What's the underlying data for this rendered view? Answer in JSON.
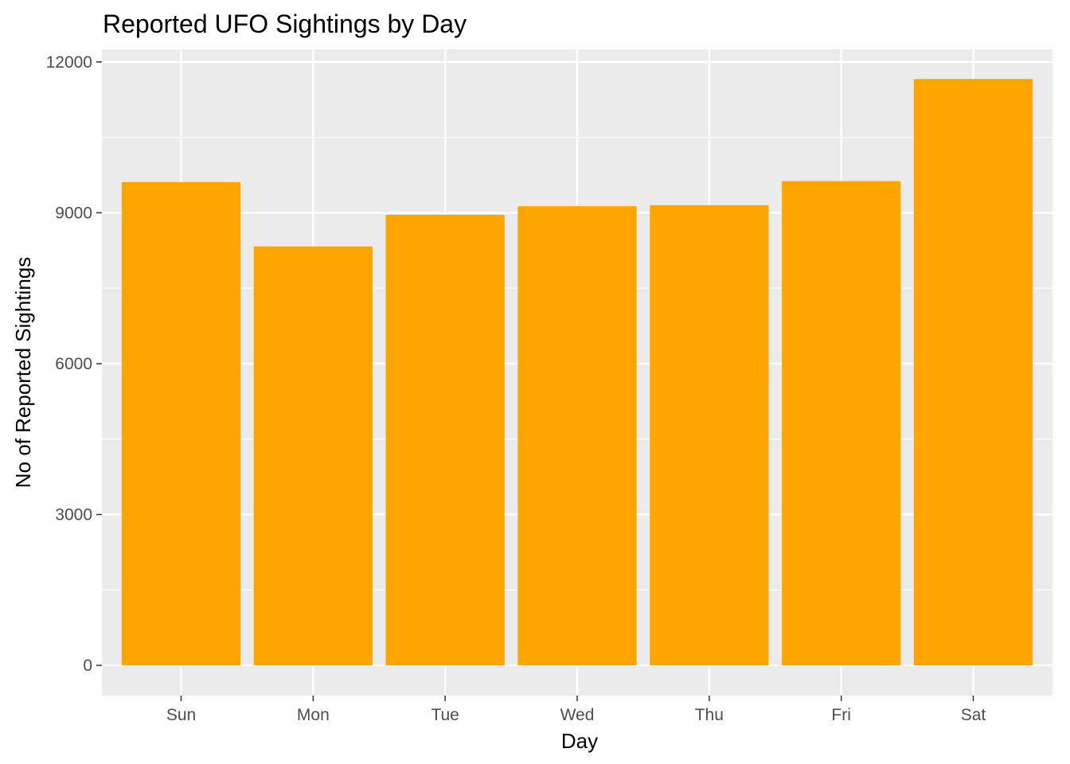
{
  "chart_data": {
    "type": "bar",
    "title": "Reported UFO Sightings by Day",
    "xlabel": "Day",
    "ylabel": "No of Reported Sightings",
    "categories": [
      "Sun",
      "Mon",
      "Tue",
      "Wed",
      "Thu",
      "Fri",
      "Sat"
    ],
    "values": [
      9610,
      8330,
      8960,
      9130,
      9150,
      9630,
      11660
    ],
    "ylim": [
      -600,
      12250
    ],
    "yticks": [
      0,
      3000,
      6000,
      9000,
      12000
    ],
    "ytick_labels": [
      "0",
      "3000",
      "6000",
      "9000",
      "12000"
    ],
    "grid": true,
    "legend": "none",
    "colors": {
      "bar": "#FFA500",
      "panel": "#EBEBEB",
      "grid": "#FFFFFF",
      "tick_text": "#4D4D4D"
    }
  }
}
